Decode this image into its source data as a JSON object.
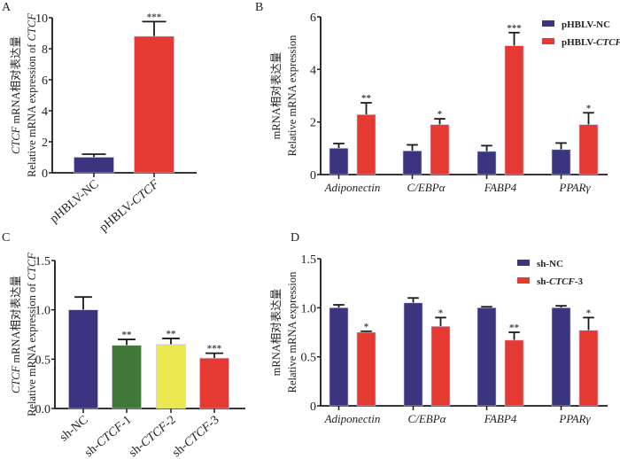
{
  "colors": {
    "blue": "#3b3580",
    "red": "#e53a32",
    "green": "#42773a",
    "yellow": "#ebe84f",
    "axis": "#1a1a1a"
  },
  "chart_data": [
    {
      "id": "A",
      "panel_label": "A",
      "type": "bar",
      "ylabel_cn": "CTCF mRNA相对表达量",
      "ylabel_en": "Relative mRNA expression of CTCF",
      "ylim": [
        0,
        10
      ],
      "yticks": [
        "0",
        "2",
        "4",
        "6",
        "8",
        "10"
      ],
      "categories": [
        "pHBLV-NC",
        "pHBLV-CTCF"
      ],
      "series": [
        {
          "name": "",
          "values": [
            1.0,
            8.8
          ],
          "errors": [
            0.2,
            0.95
          ],
          "colors": [
            "blue",
            "red"
          ],
          "sig": [
            "",
            "***"
          ]
        }
      ]
    },
    {
      "id": "B",
      "panel_label": "B",
      "type": "bar",
      "ylabel_cn": "mRNA相对表达量",
      "ylabel_en": "Relative mRNA expression",
      "ylim": [
        0,
        6
      ],
      "yticks": [
        "0",
        "2",
        "4",
        "6"
      ],
      "categories": [
        "Adiponectin",
        "C/EBPα",
        "FABP4",
        "PPARγ"
      ],
      "legend": [
        "pHBLV-NC",
        "pHBLV-CTCF"
      ],
      "legend_position": "top-right",
      "series": [
        {
          "name": "pHBLV-NC",
          "color": "blue",
          "values": [
            1.0,
            0.9,
            0.88,
            0.95
          ],
          "errors": [
            0.18,
            0.23,
            0.22,
            0.25
          ],
          "sig": [
            "",
            "",
            "",
            ""
          ]
        },
        {
          "name": "pHBLV-CTCF",
          "color": "red",
          "values": [
            2.28,
            1.9,
            4.9,
            1.9
          ],
          "errors": [
            0.45,
            0.22,
            0.5,
            0.45
          ],
          "sig": [
            "**",
            "*",
            "***",
            "*"
          ]
        }
      ]
    },
    {
      "id": "C",
      "panel_label": "C",
      "type": "bar",
      "ylabel_cn": "CTCF mRNA相对表达量",
      "ylabel_en": "Relative mRNA expression of CTCF",
      "ylim": [
        0,
        1.5
      ],
      "yticks": [
        "0.0",
        "0.5",
        "1.0",
        "1.5"
      ],
      "categories": [
        "sh-NC",
        "sh-CTCF-1",
        "sh-CTCF-2",
        "sh-CTCF-3"
      ],
      "series": [
        {
          "name": "",
          "values": [
            1.0,
            0.64,
            0.65,
            0.51
          ],
          "errors": [
            0.13,
            0.06,
            0.06,
            0.05
          ],
          "colors": [
            "blue",
            "green",
            "yellow",
            "red"
          ],
          "sig": [
            "",
            "**",
            "**",
            "***"
          ]
        }
      ]
    },
    {
      "id": "D",
      "panel_label": "D",
      "type": "bar",
      "ylabel_cn": "mRNA相对表达量",
      "ylabel_en": "Relative mRNA expression",
      "ylim": [
        0,
        1.5
      ],
      "yticks": [
        "0",
        "0.5",
        "1.0",
        "1.5"
      ],
      "categories": [
        "Adiponectin",
        "C/EBPα",
        "FABP4",
        "PPARγ"
      ],
      "legend": [
        "sh-NC",
        "sh-CTCF-3"
      ],
      "legend_position": "top-right",
      "series": [
        {
          "name": "sh-NC",
          "color": "blue",
          "values": [
            1.0,
            1.05,
            1.0,
            1.0
          ],
          "errors": [
            0.03,
            0.05,
            0.01,
            0.02
          ],
          "sig": [
            "",
            "",
            "",
            ""
          ]
        },
        {
          "name": "sh-CTCF-3",
          "color": "red",
          "values": [
            0.75,
            0.81,
            0.67,
            0.77
          ],
          "errors": [
            0.01,
            0.09,
            0.08,
            0.13
          ],
          "sig": [
            "*",
            "*",
            "**",
            "*"
          ]
        }
      ]
    }
  ]
}
